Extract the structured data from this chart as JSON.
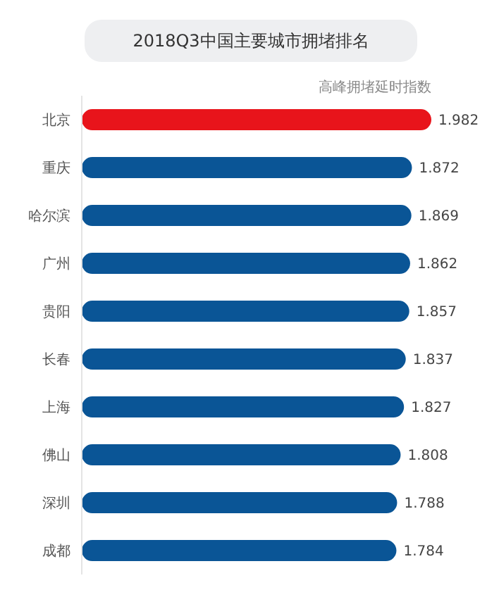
{
  "chart_data": {
    "type": "bar",
    "orientation": "horizontal",
    "title": "2018Q3中国主要城市拥堵排名",
    "xlabel": "高峰拥堵延时指数",
    "categories": [
      "北京",
      "重庆",
      "哈尔滨",
      "广州",
      "贵阳",
      "长春",
      "上海",
      "佛山",
      "深圳",
      "成都"
    ],
    "values": [
      1.982,
      1.872,
      1.869,
      1.862,
      1.857,
      1.837,
      1.827,
      1.808,
      1.788,
      1.784
    ],
    "colors": [
      "#e8141b",
      "#0a5596",
      "#0a5596",
      "#0a5596",
      "#0a5596",
      "#0a5596",
      "#0a5596",
      "#0a5596",
      "#0a5596",
      "#0a5596"
    ],
    "data_labels": true,
    "grid": false
  }
}
